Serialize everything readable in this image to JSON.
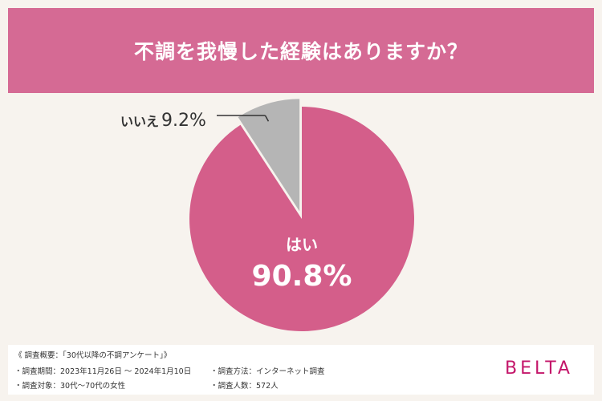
{
  "header": {
    "title": "不調を我慢した経験はありますか？"
  },
  "chart_data": {
    "type": "pie",
    "categories": [
      "はい",
      "いいえ"
    ],
    "values": [
      90.8,
      9.2
    ],
    "labels": [
      "90.8%",
      "9.2%"
    ],
    "colors": [
      "#d45e8a",
      "#b5b5b5"
    ],
    "start_angle": "12 o'clock",
    "direction": "clockwise"
  },
  "footer": {
    "overview": "《 調査概要：「30代以降の不調アンケート」》",
    "period": "・調査期間：2023年11月26日 〜 2024年1月10日",
    "method": "・調査方法：インターネット調査",
    "target": "・調査対象：30代〜70代の女性",
    "count": "・調査人数：572人",
    "brand": "BELTA"
  }
}
